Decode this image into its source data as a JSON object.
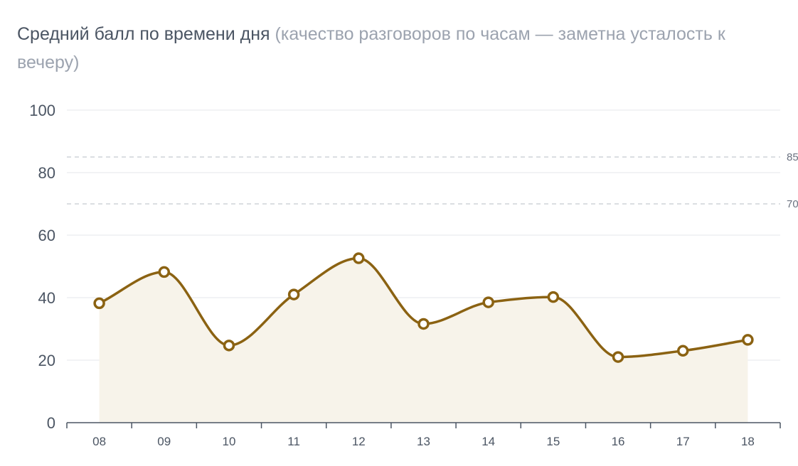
{
  "chart_data": {
    "type": "line",
    "title": "Средний балл по времени дня",
    "subtitle": "(качество разговоров по часам — заметна усталость к вечеру)",
    "x": [
      "08",
      "09",
      "10",
      "11",
      "12",
      "13",
      "14",
      "15",
      "16",
      "17",
      "18"
    ],
    "series": [
      {
        "values": [
          38.2,
          48.2,
          24.7,
          41.0,
          52.6,
          31.6,
          38.5,
          40.2,
          21.0,
          23.0,
          26.5
        ]
      }
    ],
    "ylim": [
      0,
      100
    ],
    "yticks": [
      0,
      20,
      40,
      60,
      80,
      100
    ],
    "reference_lines": [
      {
        "value": 85,
        "label": "85"
      },
      {
        "value": 70,
        "label": "70"
      }
    ],
    "xlabel": "",
    "ylabel": "",
    "grid": true,
    "line_color": "#8b6212",
    "area_color": "#f7f3ea",
    "point_fill": "#ffffff"
  }
}
